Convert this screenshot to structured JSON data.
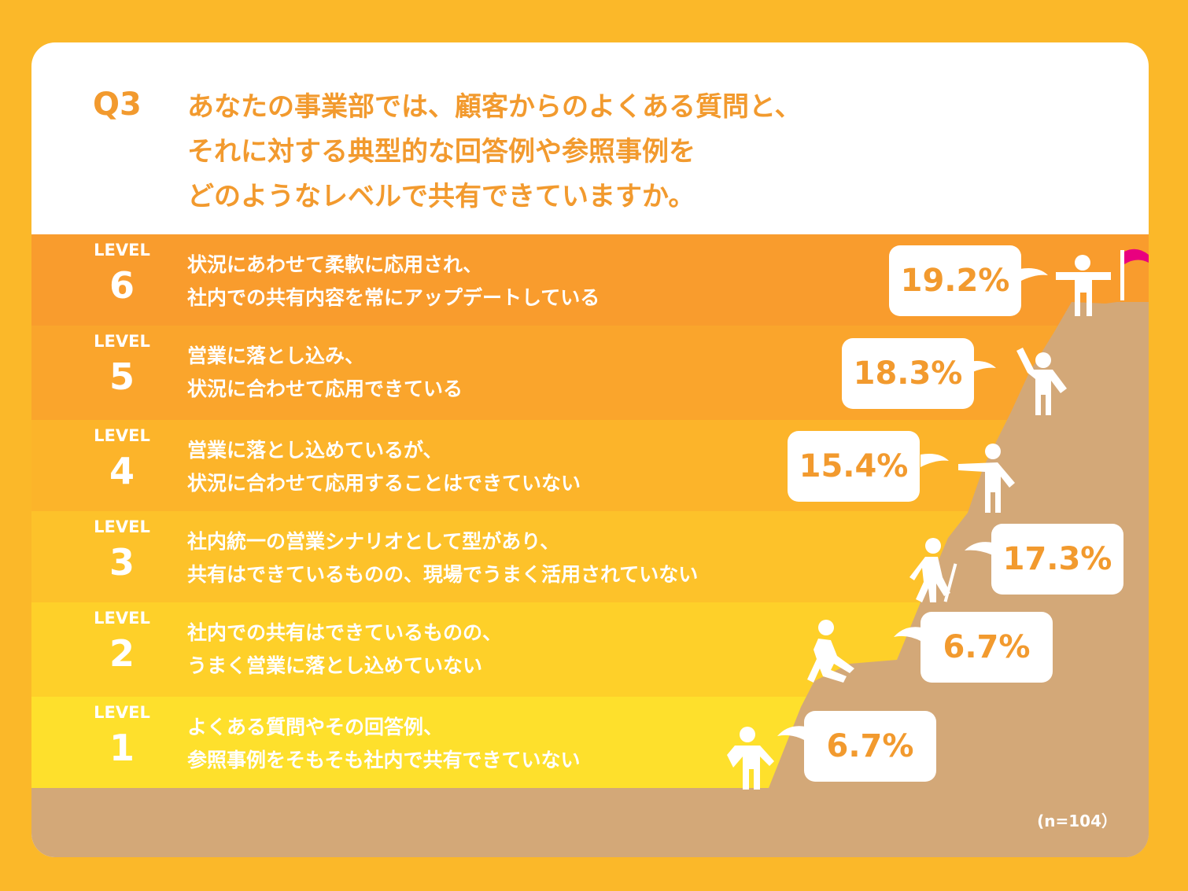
{
  "question": {
    "label": "Q3",
    "lines": [
      "あなたの事業部では、顧客からのよくある質問と、",
      "それに対する典型的な回答例や参照事例を",
      "どのようなレベルで共有できていますか。"
    ]
  },
  "note": "(n=104）",
  "colors": {
    "level6": "#F99C2D",
    "level5": "#FAA52C",
    "level4": "#FCB42A",
    "level3": "#FDC22A",
    "level2": "#FED029",
    "level1": "#FEE02C",
    "mountain": "#D3A878",
    "accent": "#F29A2E",
    "flag": "#E9007F"
  },
  "chart_data": {
    "type": "bar",
    "unit": "%",
    "categories": [
      "LEVEL 6",
      "LEVEL 5",
      "LEVEL 4",
      "LEVEL 3",
      "LEVEL 2",
      "LEVEL 1"
    ],
    "values": [
      19.2,
      18.3,
      15.4,
      17.3,
      6.7,
      6.7
    ],
    "levels": [
      {
        "tag": "LEVEL",
        "number": "6",
        "value": 19.2,
        "value_label": "19.2%",
        "lines": [
          "状況にあわせて柔軟に応用され、",
          "社内での共有内容を常にアップデートしている"
        ]
      },
      {
        "tag": "LEVEL",
        "number": "5",
        "value": 18.3,
        "value_label": "18.3%",
        "lines": [
          "営業に落とし込み、",
          "状況に合わせて応用できている"
        ]
      },
      {
        "tag": "LEVEL",
        "number": "4",
        "value": 15.4,
        "value_label": "15.4%",
        "lines": [
          "営業に落とし込めているが、",
          "状況に合わせて応用することはできていない"
        ]
      },
      {
        "tag": "LEVEL",
        "number": "3",
        "value": 17.3,
        "value_label": "17.3%",
        "lines": [
          "社内統一の営業シナリオとして型があり、",
          "共有はできているものの、現場でうまく活用されていない"
        ]
      },
      {
        "tag": "LEVEL",
        "number": "2",
        "value": 6.7,
        "value_label": "6.7%",
        "lines": [
          "社内での共有はできているものの、",
          "うまく営業に落とし込めていない"
        ]
      },
      {
        "tag": "LEVEL",
        "number": "1",
        "value": 6.7,
        "value_label": "6.7%",
        "lines": [
          "よくある質問やその回答例、",
          "参照事例をそもそも社内で共有できていない"
        ]
      }
    ]
  }
}
